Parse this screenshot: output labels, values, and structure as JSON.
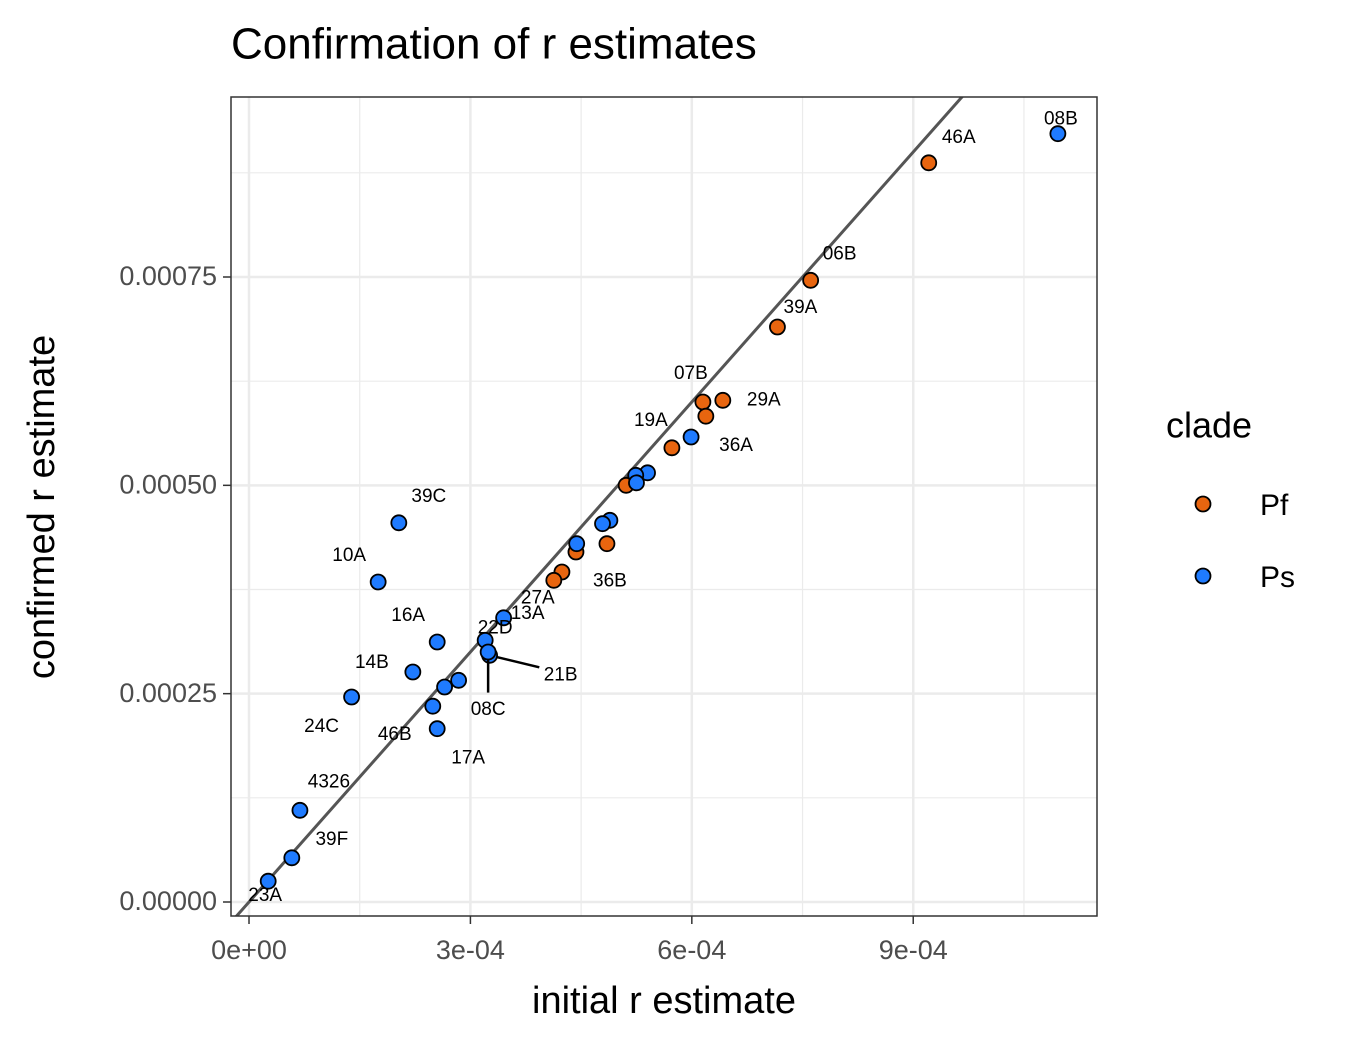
{
  "chart_data": {
    "type": "scatter",
    "title": "Confirmation of r estimates",
    "x_label": "initial r estimate",
    "y_label": "confirmed r estimate",
    "legend_title": "clade",
    "legend_position": "right",
    "grid": true,
    "xlim": [
      -2.44e-05,
      0.001149
    ],
    "ylim": [
      -1.68e-05,
      0.000966
    ],
    "xticks": [
      {
        "value": 0,
        "label": "0e+00"
      },
      {
        "value": 0.0003,
        "label": "3e-04"
      },
      {
        "value": 0.0006,
        "label": "6e-04"
      },
      {
        "value": 0.0009,
        "label": "9e-04"
      }
    ],
    "yticks": [
      {
        "value": 0,
        "label": "0.00000"
      },
      {
        "value": 0.00025,
        "label": "0.00025"
      },
      {
        "value": 0.0005,
        "label": "0.00050"
      },
      {
        "value": 0.00075,
        "label": "0.00075"
      }
    ],
    "minor_xgrid": [
      0.00015,
      0.00045,
      0.00075,
      0.00105
    ],
    "minor_ygrid": [
      0.000125,
      0.000375,
      0.000625,
      0.000875
    ],
    "reference_line": {
      "slope": 1,
      "intercept": 0,
      "color": "#555555"
    },
    "series": [
      {
        "name": "Pf",
        "color": "#E8650F",
        "x": [
          0.000921,
          0.000761,
          0.000716,
          0.000615,
          0.000642,
          0.000619,
          0.000573,
          0.000511,
          0.000485,
          0.000443,
          0.000424,
          0.000413
        ],
        "values": [
          0.000887,
          0.000746,
          0.00069,
          0.0006,
          0.000602,
          0.000583,
          0.000545,
          0.0005,
          0.00043,
          0.00042,
          0.000396,
          0.000386
        ],
        "labels": [
          "46A",
          "06B",
          "39A",
          "07B",
          "29A",
          null,
          "19A",
          null,
          "36B",
          null,
          null,
          "27A"
        ]
      },
      {
        "name": "Ps",
        "color": "#1F7BFF",
        "x": [
          0.001096,
          0.000599,
          0.00054,
          0.000524,
          0.000525,
          0.000489,
          0.000479,
          0.000444,
          0.000203,
          0.000175,
          0.000345,
          0.000255,
          0.00032,
          0.000326,
          0.000324,
          0.000222,
          0.000284,
          0.000265,
          0.000139,
          0.000249,
          0.000255,
          6.9e-05,
          5.8e-05,
          2.6e-05
        ],
        "values": [
          0.000922,
          0.000558,
          0.000515,
          0.000512,
          0.000503,
          0.000458,
          0.000454,
          0.00043,
          0.000455,
          0.000384,
          0.000341,
          0.000312,
          0.000314,
          0.000296,
          0.0003,
          0.000276,
          0.000266,
          0.000258,
          0.000246,
          0.000235,
          0.000208,
          0.00011,
          5.3e-05,
          2.5e-05
        ],
        "labels": [
          "08B",
          "36A",
          null,
          null,
          null,
          null,
          null,
          null,
          "39C",
          "10A",
          "13A",
          "16A",
          "22D",
          "21B",
          "08C",
          "14B",
          null,
          null,
          "24C",
          "46B",
          "17A",
          "4326",
          "39F",
          "23A"
        ]
      }
    ]
  }
}
